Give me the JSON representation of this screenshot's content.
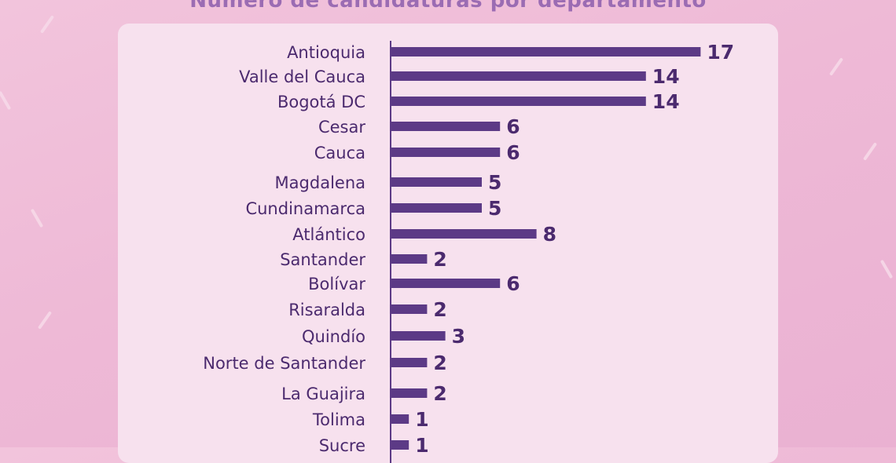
{
  "chart_data": {
    "type": "bar",
    "orientation": "horizontal",
    "title": "Número de candidaturas por departamento",
    "categories": [
      "Antioquia",
      "Valle del Cauca",
      "Bogotá DC",
      "Cesar",
      "Cauca",
      "Magdalena",
      "Cundinamarca",
      "Atlántico",
      "Santander",
      "Bolívar",
      "Risaralda",
      "Quindío",
      "Norte de Santander",
      "La Guajira",
      "Tolima",
      "Sucre"
    ],
    "values": [
      17,
      14,
      14,
      6,
      6,
      5,
      5,
      8,
      2,
      6,
      2,
      3,
      2,
      2,
      1,
      1
    ],
    "grid": false,
    "legend": "none",
    "colors": {
      "bar": "#5c3a86",
      "text": "#4b2a6e",
      "title": "#9b6cb3",
      "panel": "#f7e1ee"
    }
  }
}
